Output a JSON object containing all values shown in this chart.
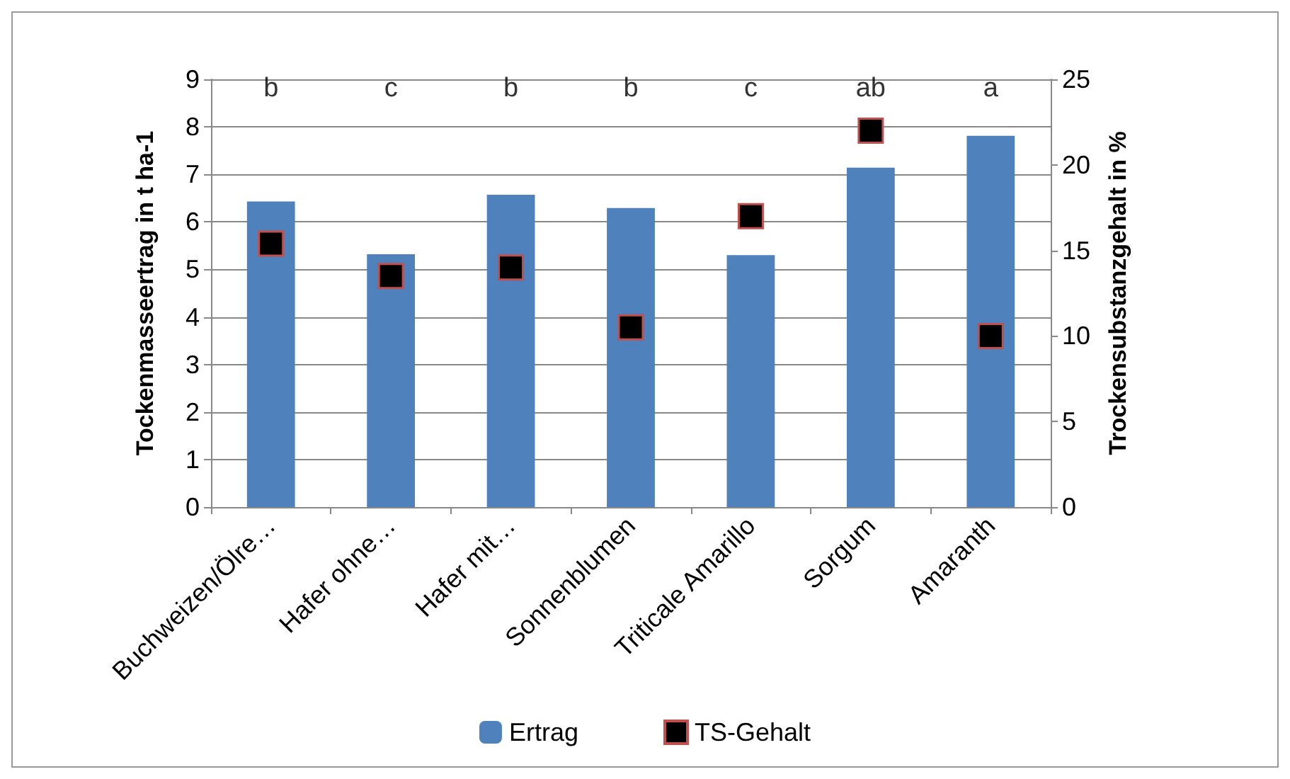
{
  "chart_data": {
    "type": "bar",
    "categories": [
      "Buchweizen/Ölre…",
      "Hafer ohne…",
      "Hafer mit…",
      "Sonnenblumen",
      "Triticale Amarillo",
      "Sorgum",
      "Amaranth"
    ],
    "series": [
      {
        "name": "Ertrag",
        "color": "#4f81bd",
        "values": [
          6.43,
          5.32,
          6.57,
          6.29,
          5.3,
          7.14,
          7.81
        ]
      },
      {
        "name": "TS-Gehalt",
        "type": "scatter",
        "axis": "y2",
        "color": "#000000",
        "values": [
          15.4,
          13.5,
          14.0,
          10.5,
          17.0,
          22.0,
          10.0
        ]
      }
    ],
    "ylabel": "Tockenmasseertrag in t ha-1",
    "y2label": "Trockensubstanzgehalt in %",
    "ylim": [
      0,
      9
    ],
    "yticks": [
      0,
      1,
      2,
      3,
      4,
      5,
      6,
      7,
      8,
      9
    ],
    "y2lim": [
      0,
      25
    ],
    "y2ticks": [
      0,
      5,
      10,
      15,
      20,
      25
    ],
    "grid": "y",
    "legend": "bottom",
    "marker": "square",
    "annotations": [
      "b",
      "c",
      "b",
      "b",
      "c",
      "ab",
      "a"
    ]
  }
}
